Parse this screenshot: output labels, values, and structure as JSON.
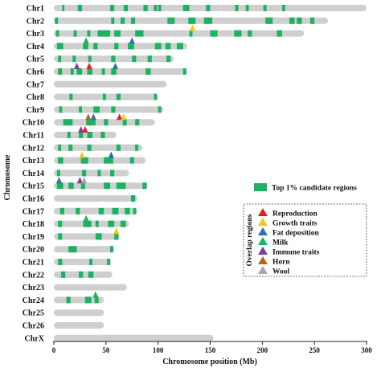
{
  "chart_data": {
    "type": "bar",
    "xlabel": "Chromosome position (Mb)",
    "ylabel": "Chromosome",
    "xlim": [
      0,
      300
    ],
    "xticks": [
      0,
      50,
      100,
      150,
      200,
      250,
      300
    ],
    "grid": false,
    "legend_placement": "right",
    "colors": {
      "chromosome": "#cfcfcf",
      "candidate": "#1ab360"
    },
    "chromosomes": [
      {
        "name": "Chr1",
        "length": 300,
        "regions": [
          [
            8,
            10
          ],
          [
            23,
            27
          ],
          [
            54,
            58
          ],
          [
            67,
            71
          ],
          [
            86,
            90
          ],
          [
            96,
            99
          ],
          [
            100,
            103
          ],
          [
            124,
            130
          ],
          [
            146,
            150
          ],
          [
            174,
            177
          ],
          [
            184,
            187
          ],
          [
            201,
            204
          ],
          [
            219,
            222
          ]
        ],
        "markers": []
      },
      {
        "name": "Chr2",
        "length": 263,
        "regions": [
          [
            1,
            4
          ],
          [
            55,
            58
          ],
          [
            64,
            68
          ],
          [
            74,
            78
          ],
          [
            109,
            116
          ],
          [
            129,
            136
          ],
          [
            144,
            152
          ],
          [
            203,
            210
          ],
          [
            226,
            231
          ],
          [
            233,
            238
          ],
          [
            246,
            250
          ]
        ],
        "markers": []
      },
      {
        "name": "Chr3",
        "length": 240,
        "regions": [
          [
            2,
            5
          ],
          [
            19,
            22
          ],
          [
            32,
            35
          ],
          [
            42,
            54
          ],
          [
            58,
            64
          ],
          [
            78,
            86
          ],
          [
            130,
            133
          ],
          [
            150,
            157
          ],
          [
            173,
            180
          ],
          [
            186,
            190
          ],
          [
            214,
            219
          ]
        ],
        "markers": [
          {
            "pos": 133,
            "type": "growth"
          }
        ]
      },
      {
        "name": "Chr4",
        "length": 128,
        "regions": [
          [
            3,
            9
          ],
          [
            28,
            33
          ],
          [
            38,
            42
          ],
          [
            58,
            62
          ],
          [
            71,
            77
          ],
          [
            97,
            103
          ],
          [
            107,
            112
          ],
          [
            118,
            124
          ]
        ],
        "markers": [
          {
            "pos": 31,
            "type": "milk"
          },
          {
            "pos": 75,
            "type": "fat"
          }
        ]
      },
      {
        "name": "Chr5",
        "length": 115,
        "regions": [
          [
            4,
            7
          ],
          [
            18,
            21
          ],
          [
            33,
            36
          ],
          [
            55,
            59
          ],
          [
            75,
            79
          ],
          [
            90,
            94
          ],
          [
            108,
            112
          ]
        ],
        "markers": []
      },
      {
        "name": "Chr6",
        "length": 128,
        "regions": [
          [
            4,
            8
          ],
          [
            16,
            19
          ],
          [
            22,
            27
          ],
          [
            32,
            37
          ],
          [
            46,
            49
          ],
          [
            55,
            60
          ],
          [
            88,
            93
          ],
          [
            124,
            127
          ]
        ],
        "markers": [
          {
            "pos": 22,
            "type": "immune"
          },
          {
            "pos": 34,
            "type": "reproduction"
          },
          {
            "pos": 59,
            "type": "fat"
          }
        ]
      },
      {
        "name": "Chr7",
        "length": 108,
        "regions": [],
        "markers": []
      },
      {
        "name": "Chr8",
        "length": 100,
        "regions": [
          [
            15,
            18
          ],
          [
            47,
            50
          ],
          [
            60,
            64
          ],
          [
            96,
            99
          ]
        ],
        "markers": []
      },
      {
        "name": "Chr9",
        "length": 105,
        "regions": [
          [
            5,
            8
          ],
          [
            24,
            27
          ],
          [
            38,
            44
          ],
          [
            55,
            59
          ],
          [
            100,
            103
          ]
        ],
        "markers": []
      },
      {
        "name": "Chr10",
        "length": 97,
        "regions": [
          [
            9,
            18
          ],
          [
            31,
            40
          ],
          [
            48,
            52
          ],
          [
            66,
            70
          ],
          [
            78,
            82
          ]
        ],
        "markers": [
          {
            "pos": 33,
            "type": "horn"
          },
          {
            "pos": 38,
            "type": "fat"
          },
          {
            "pos": 63,
            "type": "reproduction"
          },
          {
            "pos": 67,
            "type": "growth"
          }
        ]
      },
      {
        "name": "Chr11",
        "length": 60,
        "regions": [
          [
            13,
            16
          ],
          [
            24,
            28
          ],
          [
            32,
            37
          ],
          [
            45,
            49
          ]
        ],
        "markers": [
          {
            "pos": 26,
            "type": "immune"
          },
          {
            "pos": 30,
            "type": "reproduction"
          }
        ]
      },
      {
        "name": "Chr12",
        "length": 85,
        "regions": [
          [
            4,
            7
          ],
          [
            14,
            18
          ],
          [
            32,
            36
          ],
          [
            60,
            64
          ],
          [
            78,
            81
          ]
        ],
        "markers": []
      },
      {
        "name": "Chr13",
        "length": 88,
        "regions": [
          [
            4,
            9
          ],
          [
            26,
            33
          ],
          [
            48,
            57
          ],
          [
            73,
            77
          ]
        ],
        "markers": [
          {
            "pos": 27,
            "type": "growth"
          },
          {
            "pos": 55,
            "type": "fat"
          }
        ]
      },
      {
        "name": "Chr14",
        "length": 72,
        "regions": [
          [
            3,
            6
          ],
          [
            27,
            31
          ],
          [
            42,
            45
          ],
          [
            54,
            58
          ]
        ],
        "markers": []
      },
      {
        "name": "Chr15",
        "length": 90,
        "regions": [
          [
            3,
            9
          ],
          [
            14,
            19
          ],
          [
            26,
            30
          ],
          [
            48,
            54
          ],
          [
            60,
            69
          ],
          [
            85,
            89
          ]
        ],
        "markers": [
          {
            "pos": 5,
            "type": "fat"
          },
          {
            "pos": 25,
            "type": "immune"
          },
          {
            "pos": 29,
            "type": "wool"
          }
        ]
      },
      {
        "name": "Chr16",
        "length": 80,
        "regions": [
          [
            74,
            78
          ]
        ],
        "markers": []
      },
      {
        "name": "Chr17",
        "length": 80,
        "regions": [
          [
            6,
            10
          ],
          [
            21,
            25
          ],
          [
            43,
            48
          ],
          [
            56,
            62
          ],
          [
            68,
            73
          ],
          [
            76,
            79
          ]
        ],
        "markers": []
      },
      {
        "name": "Chr18",
        "length": 72,
        "regions": [
          [
            4,
            8
          ],
          [
            28,
            36
          ],
          [
            40,
            43
          ],
          [
            52,
            58
          ],
          [
            64,
            69
          ]
        ],
        "markers": [
          {
            "pos": 31,
            "type": "milk"
          }
        ]
      },
      {
        "name": "Chr19",
        "length": 63,
        "regions": [
          [
            4,
            8
          ],
          [
            40,
            46
          ],
          [
            58,
            62
          ]
        ],
        "markers": [
          {
            "pos": 60,
            "type": "growth"
          }
        ]
      },
      {
        "name": "Chr20",
        "length": 58,
        "regions": [
          [
            14,
            22
          ],
          [
            54,
            57
          ]
        ],
        "markers": []
      },
      {
        "name": "Chr21",
        "length": 55,
        "regions": [
          [
            4,
            8
          ],
          [
            34,
            37
          ],
          [
            51,
            54
          ]
        ],
        "markers": []
      },
      {
        "name": "Chr22",
        "length": 56,
        "regions": [
          [
            7,
            11
          ],
          [
            24,
            28
          ],
          [
            33,
            38
          ]
        ],
        "markers": []
      },
      {
        "name": "Chr23",
        "length": 70,
        "regions": [],
        "markers": []
      },
      {
        "name": "Chr24",
        "length": 48,
        "regions": [
          [
            12,
            16
          ],
          [
            30,
            36
          ],
          [
            39,
            43
          ]
        ],
        "markers": [
          {
            "pos": 40,
            "type": "milk"
          }
        ]
      },
      {
        "name": "Chr25",
        "length": 48,
        "regions": [],
        "markers": []
      },
      {
        "name": "Chr26",
        "length": 48,
        "regions": [],
        "markers": []
      },
      {
        "name": "ChrX",
        "length": 153,
        "regions": [],
        "markers": []
      }
    ],
    "legend": {
      "candidate_label": "Top 1% candidate regions",
      "overlap_title": "Overlap regions",
      "entries": [
        {
          "key": "reproduction",
          "label": "Reproduction",
          "color": "#e02020"
        },
        {
          "key": "growth",
          "label": "Growth traits",
          "color": "#f5c518"
        },
        {
          "key": "fat",
          "label": "Fat deposition",
          "color": "#2f6db5"
        },
        {
          "key": "milk",
          "label": "Milk",
          "color": "#1ab360"
        },
        {
          "key": "immune",
          "label": "Immune traits",
          "color": "#7b3fa0"
        },
        {
          "key": "horn",
          "label": "Horn",
          "color": "#b8651e"
        },
        {
          "key": "wool",
          "label": "Wool",
          "color": "#a8a8a8"
        }
      ]
    }
  }
}
